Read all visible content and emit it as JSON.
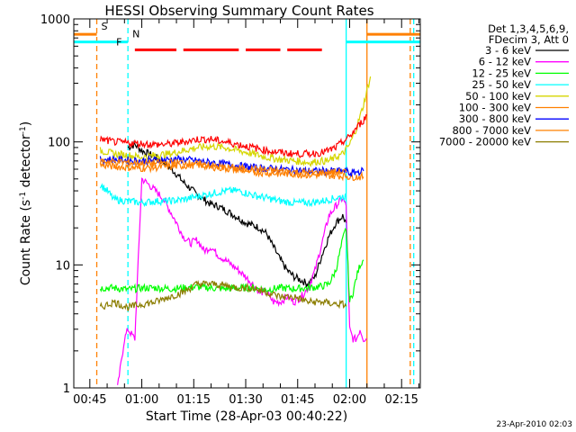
{
  "chart_data": {
    "type": "line",
    "title": "HESSI Observing Summary Count Rates",
    "xlabel": "Start Time (28-Apr-03 00:40:22)",
    "ylabel_main": "Count Rate (s",
    "ylabel_sup1": "-1",
    "ylabel_mid": " detector",
    "ylabel_sup2": "-1",
    "ylabel_end": ")",
    "y_scale": "log",
    "ylim": [
      1,
      1000
    ],
    "xlim_minutes": [
      40.37,
      140.4
    ],
    "x_tick_labels": [
      "00:45",
      "01:00",
      "01:15",
      "01:30",
      "01:45",
      "02:00",
      "02:15"
    ],
    "x_tick_minutes": [
      45,
      60,
      75,
      90,
      105,
      120,
      135
    ],
    "y_tick_labels": [
      "1",
      "10",
      "100",
      "1000"
    ],
    "y_tick_values": [
      1,
      10,
      100,
      1000
    ],
    "legend_header": [
      "Det 1,3,4,5,6,9,",
      "FDecim 3, Att 0"
    ],
    "legend_position": "right",
    "series": [
      {
        "name": "3 - 6 keV",
        "color": "#000000",
        "x": [
          56,
          58,
          60,
          62,
          64,
          66,
          68,
          70,
          72,
          74,
          76,
          78,
          80,
          82,
          84,
          86,
          88,
          90,
          92,
          94,
          96,
          98,
          100,
          102,
          104,
          106,
          108,
          110,
          112,
          114,
          116,
          118,
          119
        ],
        "y": [
          90,
          95,
          85,
          80,
          75,
          70,
          62,
          55,
          47,
          42,
          37,
          34,
          31,
          30,
          28,
          26,
          24,
          22,
          21,
          20,
          18,
          14,
          11,
          9,
          8,
          7.5,
          7,
          8,
          12,
          17,
          22,
          25,
          22
        ]
      },
      {
        "name": "6 - 12 keV",
        "color": "#ff00ff",
        "x": [
          53,
          55,
          56,
          58,
          60,
          62,
          64,
          66,
          68,
          70,
          72,
          74,
          76,
          78,
          80,
          82,
          84,
          86,
          88,
          90,
          92,
          94,
          96,
          98,
          100,
          102,
          104,
          106,
          108,
          110,
          112,
          114,
          116,
          118,
          119,
          120,
          121,
          122,
          123,
          124,
          125
        ],
        "y": [
          1,
          2.5,
          3,
          2.5,
          50,
          45,
          40,
          35,
          28,
          22,
          17,
          15,
          16,
          13,
          14,
          12,
          11,
          10,
          9,
          8,
          7,
          6,
          6,
          5,
          5,
          5.5,
          5,
          5.5,
          6.5,
          9,
          15,
          25,
          30,
          35,
          30,
          3,
          2.5,
          2.5,
          3,
          2.5,
          2.5
        ]
      },
      {
        "name": "12 - 25 keV",
        "color": "#00ff00",
        "x": [
          48,
          52,
          56,
          60,
          64,
          68,
          72,
          76,
          80,
          84,
          88,
          92,
          96,
          100,
          104,
          108,
          112,
          114,
          116,
          118,
          119,
          120,
          121,
          122,
          123,
          124
        ],
        "y": [
          6.5,
          6.5,
          6.3,
          6.5,
          6.5,
          6.4,
          6.5,
          6.6,
          6.5,
          6.4,
          6.5,
          6.5,
          6.3,
          6.5,
          6.4,
          6.5,
          6.7,
          7,
          9,
          16,
          20,
          5,
          6,
          8,
          10,
          11
        ]
      },
      {
        "name": "25 - 50 keV",
        "color": "#00ffff",
        "x": [
          48,
          50,
          52,
          56,
          60,
          64,
          68,
          72,
          76,
          80,
          84,
          88,
          92,
          96,
          100,
          104,
          108,
          112,
          116,
          118,
          119
        ],
        "y": [
          45,
          40,
          34,
          33,
          32,
          33,
          33,
          34,
          36,
          38,
          40,
          40,
          37,
          35,
          33,
          32,
          32,
          33,
          35,
          36,
          36
        ]
      },
      {
        "name": "50 - 100 keV",
        "color": "#d6d600",
        "x": [
          48,
          52,
          56,
          60,
          64,
          68,
          72,
          76,
          80,
          84,
          88,
          92,
          96,
          100,
          104,
          108,
          112,
          114,
          116,
          118,
          120,
          122,
          124,
          126
        ],
        "y": [
          85,
          80,
          78,
          75,
          78,
          80,
          85,
          90,
          92,
          90,
          85,
          80,
          75,
          72,
          70,
          68,
          70,
          70,
          75,
          80,
          95,
          130,
          200,
          340
        ]
      },
      {
        "name": "100 - 300 keV",
        "color": "#ff8000",
        "x": [
          48,
          52,
          56,
          60,
          64,
          68,
          72,
          76,
          80,
          84,
          88,
          92,
          96,
          100,
          104,
          108,
          112,
          116,
          118,
          119,
          120,
          121,
          122,
          123,
          124
        ],
        "y": [
          65,
          63,
          62,
          61,
          62,
          63,
          64,
          65,
          63,
          61,
          59,
          57,
          56,
          55,
          55,
          54,
          54,
          53,
          53,
          53,
          52,
          52,
          52,
          52,
          52
        ]
      },
      {
        "name": "300 - 800 keV",
        "color": "#0000ff",
        "x": [
          48,
          52,
          56,
          60,
          64,
          68,
          72,
          76,
          80,
          84,
          88,
          92,
          96,
          100,
          104,
          108,
          112,
          116,
          118,
          119,
          120,
          122,
          124
        ],
        "y": [
          72,
          72,
          71,
          70,
          71,
          72,
          72,
          70,
          68,
          66,
          64,
          62,
          61,
          60,
          59,
          58,
          58,
          58,
          58,
          58,
          55,
          57,
          58
        ]
      },
      {
        "name": "800 - 7000 keV",
        "color": "#ff8000",
        "x": [
          48,
          52,
          56,
          60,
          64,
          68,
          72,
          76,
          80,
          84,
          88,
          92,
          96,
          100,
          104,
          108,
          112,
          116,
          118,
          119
        ],
        "y": [
          70,
          69,
          68,
          67,
          67,
          68,
          68,
          66,
          64,
          62,
          61,
          60,
          59,
          58,
          57,
          56,
          56,
          57,
          57,
          57
        ]
      },
      {
        "name": "7000 - 20000 keV",
        "color": "#8b7d00",
        "x": [
          48,
          52,
          56,
          60,
          64,
          68,
          72,
          76,
          80,
          84,
          88,
          92,
          96,
          100,
          104,
          108,
          112,
          116,
          118,
          119
        ],
        "y": [
          4.5,
          5,
          4.5,
          4.8,
          5,
          5.5,
          6,
          7,
          7,
          6.8,
          6.5,
          6.5,
          6,
          5.5,
          5.5,
          5,
          5,
          4.8,
          4.8,
          4.6
        ]
      },
      {
        "name": "",
        "color": "#ff0000",
        "x": [
          48,
          52,
          56,
          60,
          64,
          68,
          72,
          76,
          80,
          84,
          88,
          92,
          96,
          100,
          104,
          108,
          112,
          114,
          116,
          118,
          120,
          122,
          124,
          125
        ],
        "y": [
          105,
          100,
          98,
          97,
          95,
          96,
          100,
          105,
          105,
          100,
          95,
          90,
          85,
          82,
          80,
          80,
          82,
          85,
          90,
          100,
          110,
          130,
          150,
          165
        ]
      }
    ],
    "flags": [
      {
        "label": "S",
        "color": "#ff8000",
        "y": 750,
        "x_segments": [
          [
            40.4,
            47
          ],
          [
            125,
            140.4
          ]
        ]
      },
      {
        "label": "N",
        "color": "#00ffff",
        "y": 650,
        "x_segments": [
          [
            40.4,
            56
          ],
          [
            119,
            140.4
          ]
        ]
      },
      {
        "label": "F",
        "color": "#ff0000",
        "y": 560,
        "x_segments": [
          [
            58,
            70
          ],
          [
            72,
            88
          ],
          [
            90,
            100
          ],
          [
            102,
            112
          ]
        ]
      }
    ],
    "vlines": [
      {
        "x": 47,
        "color": "#ff8000",
        "style": "dashed"
      },
      {
        "x": 56,
        "color": "#00ffff",
        "style": "dashed"
      },
      {
        "x": 119,
        "color": "#00ffff",
        "style": "solid"
      },
      {
        "x": 125,
        "color": "#ff8000",
        "style": "solid"
      },
      {
        "x": 137.5,
        "color": "#ff8000",
        "style": "dashed"
      },
      {
        "x": 138.5,
        "color": "#00ffff",
        "style": "dashed"
      }
    ]
  },
  "footer": {
    "timestamp": "23-Apr-2010 02:03"
  }
}
